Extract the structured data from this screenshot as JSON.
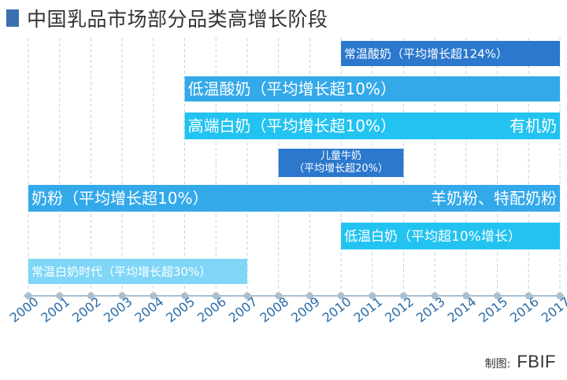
{
  "title": "中国乳品市场部分品类高增长阶段",
  "credit": {
    "label": "制图:",
    "brand": "FBIF"
  },
  "colors": {
    "dark": "#2b78cd",
    "mid": "#33a9ea",
    "light": "#22c3f0",
    "pale": "#7fd6f7",
    "axis": "#a9bfd0",
    "tick": "#2b6ca8"
  },
  "chart_data": {
    "type": "bar",
    "title": "中国乳品市场部分品类高增长阶段",
    "xlabel": "",
    "ylabel": "",
    "xlim": [
      2000,
      2017
    ],
    "x_ticks": [
      "2000",
      "2001",
      "2002",
      "2003",
      "2004",
      "2005",
      "2006",
      "2007",
      "2008",
      "2009",
      "2010",
      "2011",
      "2012",
      "2013",
      "2014",
      "2015",
      "2016",
      "2017"
    ],
    "bars": [
      {
        "labels": [
          "常温酸奶（平均增长超124%）"
        ],
        "start": 2010,
        "end": 2017,
        "color": "dark"
      },
      {
        "labels": [
          "低温酸奶（平均增长超10%）"
        ],
        "start": 2005,
        "end": 2017,
        "color": "mid"
      },
      {
        "labels": [
          "高端白奶（平均增长超10%）",
          "有机奶"
        ],
        "start": 2005,
        "end": 2017,
        "color": "light"
      },
      {
        "labels": [
          "儿童牛奶",
          "（平均增长超20%）"
        ],
        "start": 2008,
        "end": 2012,
        "color": "dark"
      },
      {
        "labels": [
          "奶粉（平均增长超10%）",
          "羊奶粉、特配奶粉"
        ],
        "start": 2000,
        "end": 2017,
        "color": "mid"
      },
      {
        "labels": [
          "低温白奶（平均超10%增长）"
        ],
        "start": 2010,
        "end": 2017,
        "color": "light"
      },
      {
        "labels": [
          "常温白奶时代（平均增长超30%）"
        ],
        "start": 2000,
        "end": 2007,
        "color": "pale"
      }
    ]
  }
}
